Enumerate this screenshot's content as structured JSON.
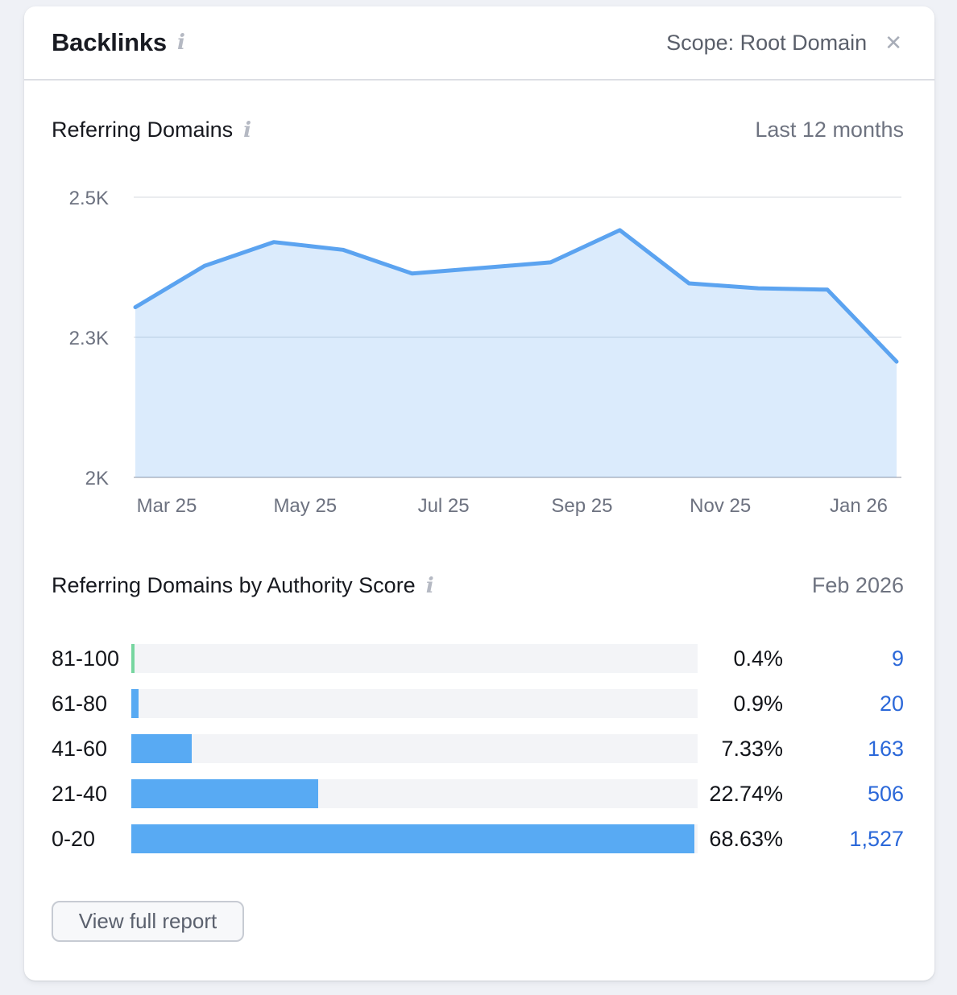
{
  "header": {
    "title": "Backlinks",
    "scope": "Scope: Root Domain"
  },
  "icons": {
    "info": "i",
    "close": "✕"
  },
  "referring_domains": {
    "title": "Referring Domains",
    "period": "Last 12 months"
  },
  "authority": {
    "title": "Referring Domains by Authority Score",
    "period": "Feb 2026",
    "bar_scale_max": 69,
    "rows": [
      {
        "label": "81-100",
        "pct": 0.4,
        "pct_label": "0.4%",
        "count": "9",
        "color": "#77d6a0"
      },
      {
        "label": "61-80",
        "pct": 0.9,
        "pct_label": "0.9%",
        "count": "20",
        "color": "#58aaf3"
      },
      {
        "label": "41-60",
        "pct": 7.33,
        "pct_label": "7.33%",
        "count": "163",
        "color": "#58aaf3"
      },
      {
        "label": "21-40",
        "pct": 22.74,
        "pct_label": "22.74%",
        "count": "506",
        "color": "#58aaf3"
      },
      {
        "label": "0-20",
        "pct": 68.63,
        "pct_label": "68.63%",
        "count": "1,527",
        "color": "#58aaf3"
      }
    ]
  },
  "footer": {
    "view_report_label": "View full report"
  },
  "colors": {
    "line": "#5ba3f0",
    "area_fill": "rgba(89,164,241,0.22)",
    "grid": "#e3e5ea",
    "axis": "#c6c9d0",
    "tick_text": "#6d7280",
    "count_link": "#2b68d9",
    "bar_blue": "#58aaf3",
    "bar_green": "#77d6a0"
  },
  "chart_data": [
    {
      "type": "area",
      "title": "Referring Domains",
      "subtitle": "Last 12 months",
      "x": [
        "Mar 25",
        "Apr 25",
        "May 25",
        "Jun 25",
        "Jul 25",
        "Aug 25",
        "Sep 25",
        "Oct 25",
        "Nov 25",
        "Dec 25",
        "Jan 26",
        "Feb 26"
      ],
      "values": [
        2343,
        2402,
        2436,
        2425,
        2391,
        2399,
        2407,
        2453,
        2377,
        2370,
        2368,
        2248
      ],
      "xticks": [
        "Mar 25",
        "May 25",
        "Jul 25",
        "Sep 25",
        "Nov 25",
        "Jan 26"
      ],
      "yticks": [
        {
          "label": "2.5K",
          "value": 2500
        },
        {
          "label": "2.3K",
          "value": 2300
        },
        {
          "label": "2K",
          "value": 2000
        }
      ],
      "ylim": [
        2000,
        2500
      ],
      "legend": false,
      "grid": "horizontal-only"
    },
    {
      "type": "bar",
      "orientation": "horizontal",
      "title": "Referring Domains by Authority Score",
      "period": "Feb 2026",
      "categories": [
        "81-100",
        "61-80",
        "41-60",
        "21-40",
        "0-20"
      ],
      "values_pct": [
        0.4,
        0.9,
        7.33,
        22.74,
        68.63
      ],
      "counts": [
        9,
        20,
        163,
        506,
        1527
      ]
    }
  ]
}
